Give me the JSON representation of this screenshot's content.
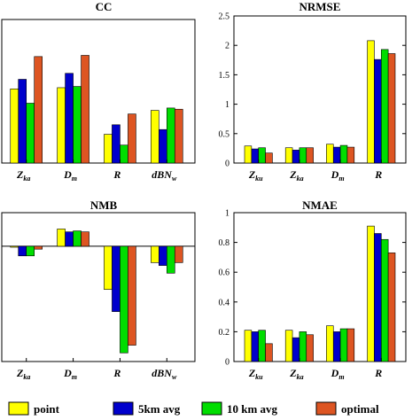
{
  "chart_data": [
    {
      "type": "bar",
      "title": "CC",
      "categories": [
        {
          "main": "Z",
          "sub": "ka"
        },
        {
          "main": "D",
          "sub": "m"
        },
        {
          "main": "R",
          "sub": ""
        },
        {
          "main": "dBN",
          "sub": "w"
        }
      ],
      "series": [
        {
          "name": "point",
          "color": "#ffff00",
          "values": [
            0.62,
            0.63,
            0.24,
            0.44
          ]
        },
        {
          "name": "5km avg",
          "color": "#0000cc",
          "values": [
            0.7,
            0.75,
            0.32,
            0.28
          ]
        },
        {
          "name": "10 km avg",
          "color": "#00dd00",
          "values": [
            0.5,
            0.64,
            0.15,
            0.46
          ]
        },
        {
          "name": "optimal",
          "color": "#dd5522",
          "values": [
            0.89,
            0.9,
            0.41,
            0.45
          ]
        }
      ],
      "ylim": [
        0,
        1.2
      ],
      "yticks": [],
      "grid": false
    },
    {
      "type": "bar",
      "title": "NRMSE",
      "categories": [
        {
          "main": "Z",
          "sub": "ku"
        },
        {
          "main": "Z",
          "sub": "ka"
        },
        {
          "main": "D",
          "sub": "m"
        },
        {
          "main": "R",
          "sub": ""
        }
      ],
      "series": [
        {
          "name": "point",
          "color": "#ffff00",
          "values": [
            0.29,
            0.26,
            0.32,
            2.08
          ]
        },
        {
          "name": "5km avg",
          "color": "#0000cc",
          "values": [
            0.24,
            0.22,
            0.27,
            1.76
          ]
        },
        {
          "name": "10 km avg",
          "color": "#00dd00",
          "values": [
            0.26,
            0.26,
            0.3,
            1.93
          ]
        },
        {
          "name": "optimal",
          "color": "#dd5522",
          "values": [
            0.17,
            0.26,
            0.27,
            1.86
          ]
        }
      ],
      "ylim": [
        0,
        2.5
      ],
      "yticks": [
        "0",
        "0.5",
        "1",
        "1.5",
        "2",
        "2.5"
      ],
      "grid": false
    },
    {
      "type": "bar",
      "title": "NMB",
      "categories": [
        {
          "main": "Z",
          "sub": "ka"
        },
        {
          "main": "D",
          "sub": "m"
        },
        {
          "main": "R",
          "sub": ""
        },
        {
          "main": "dBN",
          "sub": "w"
        }
      ],
      "series": [
        {
          "name": "point",
          "color": "#ffff00",
          "values": [
            -0.01,
            0.18,
            -0.45,
            -0.17
          ]
        },
        {
          "name": "5km avg",
          "color": "#0000cc",
          "values": [
            -0.1,
            0.15,
            -0.68,
            -0.2
          ]
        },
        {
          "name": "10 km avg",
          "color": "#00dd00",
          "values": [
            -0.1,
            0.16,
            -1.11,
            -0.28
          ]
        },
        {
          "name": "optimal",
          "color": "#dd5522",
          "values": [
            -0.03,
            0.15,
            -1.03,
            -0.17
          ]
        }
      ],
      "ylim": [
        -1.2,
        0.35
      ],
      "yticks": [],
      "grid": false
    },
    {
      "type": "bar",
      "title": "NMAE",
      "categories": [
        {
          "main": "Z",
          "sub": "ku"
        },
        {
          "main": "Z",
          "sub": "ka"
        },
        {
          "main": "D",
          "sub": "m"
        },
        {
          "main": "R",
          "sub": ""
        }
      ],
      "series": [
        {
          "name": "point",
          "color": "#ffff00",
          "values": [
            0.21,
            0.21,
            0.24,
            0.91
          ]
        },
        {
          "name": "5km avg",
          "color": "#0000cc",
          "values": [
            0.2,
            0.16,
            0.2,
            0.86
          ]
        },
        {
          "name": "10 km avg",
          "color": "#00dd00",
          "values": [
            0.21,
            0.2,
            0.22,
            0.82
          ]
        },
        {
          "name": "optimal",
          "color": "#dd5522",
          "values": [
            0.12,
            0.18,
            0.22,
            0.73
          ]
        }
      ],
      "ylim": [
        0,
        1
      ],
      "yticks": [
        "0",
        "0.2",
        "0.4",
        "0.6",
        "0.8",
        "1"
      ],
      "grid": false
    }
  ],
  "legend": {
    "placement": "bottom",
    "items": [
      {
        "label": "point",
        "color": "#ffff00"
      },
      {
        "label": "5km avg",
        "color": "#0000cc"
      },
      {
        "label": "10 km avg",
        "color": "#00dd00"
      },
      {
        "label": "optimal",
        "color": "#dd5522"
      }
    ]
  }
}
